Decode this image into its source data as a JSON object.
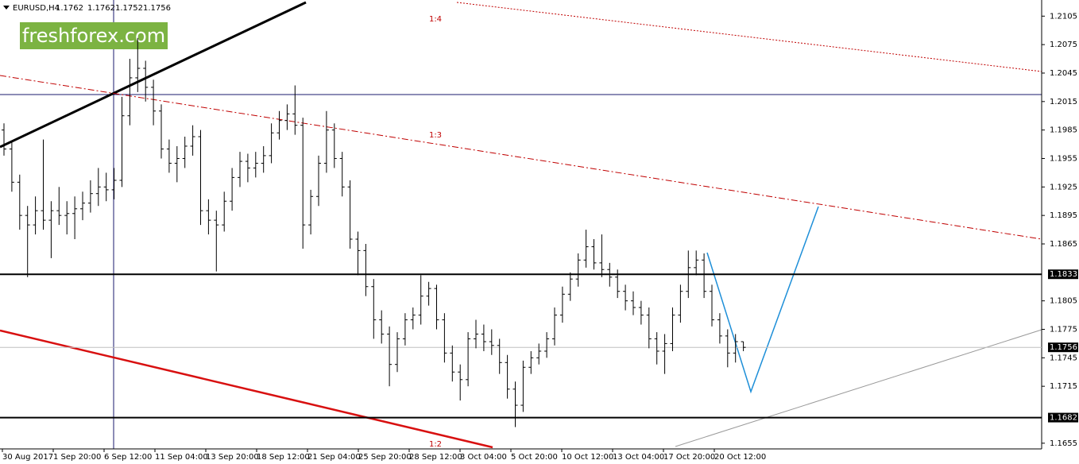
{
  "chart_data": {
    "type": "ohlc",
    "title": "EURUSD,H4",
    "watermark": "freshforex.com",
    "color": "#000000",
    "bars": [
      [
        1.1985,
        1.1992,
        1.1958,
        1.1965
      ],
      [
        1.1965,
        1.1972,
        1.192,
        1.193
      ],
      [
        1.193,
        1.1938,
        1.188,
        1.1895
      ],
      [
        1.1895,
        1.1905,
        1.183,
        1.1885
      ],
      [
        1.1885,
        1.1915,
        1.1875,
        1.19
      ],
      [
        1.19,
        1.1975,
        1.188,
        1.189
      ],
      [
        1.189,
        1.191,
        1.185,
        1.19
      ],
      [
        1.19,
        1.1925,
        1.1885,
        1.1895
      ],
      [
        1.1895,
        1.191,
        1.1875,
        1.1897
      ],
      [
        1.1897,
        1.1915,
        1.187,
        1.1902
      ],
      [
        1.1902,
        1.192,
        1.189,
        1.1908
      ],
      [
        1.1908,
        1.1932,
        1.1898,
        1.1918
      ],
      [
        1.1918,
        1.1945,
        1.1905,
        1.1925
      ],
      [
        1.1925,
        1.194,
        1.191,
        1.1922
      ],
      [
        1.1922,
        1.1945,
        1.1912,
        1.1932
      ],
      [
        1.1932,
        1.202,
        1.1925,
        1.2
      ],
      [
        1.2,
        1.206,
        1.199,
        1.204
      ],
      [
        1.204,
        1.2082,
        1.2025,
        1.205
      ],
      [
        1.205,
        1.2058,
        1.2015,
        1.203
      ],
      [
        1.203,
        1.2038,
        1.199,
        1.2005
      ],
      [
        1.2005,
        1.2012,
        1.1955,
        1.1965
      ],
      [
        1.1965,
        1.1975,
        1.194,
        1.195
      ],
      [
        1.195,
        1.1968,
        1.193,
        1.1955
      ],
      [
        1.1955,
        1.1978,
        1.1945,
        1.1968
      ],
      [
        1.1968,
        1.199,
        1.1958,
        1.1978
      ],
      [
        1.1978,
        1.1985,
        1.1885,
        1.19
      ],
      [
        1.19,
        1.1912,
        1.1875,
        1.189
      ],
      [
        1.189,
        1.19,
        1.1836,
        1.1885
      ],
      [
        1.1885,
        1.192,
        1.1878,
        1.191
      ],
      [
        1.191,
        1.1945,
        1.19,
        1.1935
      ],
      [
        1.1935,
        1.1962,
        1.1925,
        1.1952
      ],
      [
        1.1952,
        1.196,
        1.193,
        1.1945
      ],
      [
        1.1945,
        1.1962,
        1.1935,
        1.195
      ],
      [
        1.195,
        1.1968,
        1.194,
        1.1958
      ],
      [
        1.1958,
        1.1992,
        1.195,
        1.1982
      ],
      [
        1.1982,
        1.2005,
        1.1975,
        1.1995
      ],
      [
        1.1995,
        1.2012,
        1.1985,
        1.2002
      ],
      [
        1.2002,
        1.2032,
        1.198,
        1.199
      ],
      [
        1.199,
        1.1998,
        1.186,
        1.1885
      ],
      [
        1.1885,
        1.1922,
        1.1875,
        1.1915
      ],
      [
        1.1915,
        1.1958,
        1.1905,
        1.195
      ],
      [
        1.195,
        1.2005,
        1.194,
        1.1985
      ],
      [
        1.1985,
        1.1992,
        1.1945,
        1.1955
      ],
      [
        1.1955,
        1.1962,
        1.1915,
        1.1925
      ],
      [
        1.1925,
        1.1932,
        1.186,
        1.187
      ],
      [
        1.187,
        1.1878,
        1.1832,
        1.1858
      ],
      [
        1.1858,
        1.1865,
        1.181,
        1.182
      ],
      [
        1.182,
        1.1828,
        1.1765,
        1.1785
      ],
      [
        1.1785,
        1.1795,
        1.176,
        1.177
      ],
      [
        1.177,
        1.1778,
        1.1715,
        1.1738
      ],
      [
        1.1738,
        1.1772,
        1.173,
        1.1765
      ],
      [
        1.1765,
        1.1792,
        1.1758,
        1.1785
      ],
      [
        1.1785,
        1.1798,
        1.1775,
        1.179
      ],
      [
        1.179,
        1.1832,
        1.178,
        1.181
      ],
      [
        1.181,
        1.1825,
        1.18,
        1.1818
      ],
      [
        1.1818,
        1.1822,
        1.1775,
        1.1785
      ],
      [
        1.1785,
        1.1792,
        1.174,
        1.175
      ],
      [
        1.175,
        1.1758,
        1.172,
        1.173
      ],
      [
        1.173,
        1.1738,
        1.17,
        1.1722
      ],
      [
        1.1722,
        1.1772,
        1.1715,
        1.1765
      ],
      [
        1.1765,
        1.1785,
        1.1755,
        1.177
      ],
      [
        1.177,
        1.178,
        1.1752,
        1.1762
      ],
      [
        1.1762,
        1.1775,
        1.1748,
        1.1758
      ],
      [
        1.1758,
        1.1765,
        1.1728,
        1.174
      ],
      [
        1.174,
        1.1748,
        1.1702,
        1.1712
      ],
      [
        1.1712,
        1.172,
        1.1672,
        1.1695
      ],
      [
        1.1695,
        1.1742,
        1.1688,
        1.1735
      ],
      [
        1.1735,
        1.1752,
        1.1728,
        1.1745
      ],
      [
        1.1745,
        1.176,
        1.1738,
        1.1752
      ],
      [
        1.1752,
        1.1772,
        1.1745,
        1.1765
      ],
      [
        1.1765,
        1.1798,
        1.1758,
        1.179
      ],
      [
        1.179,
        1.182,
        1.1782,
        1.1812
      ],
      [
        1.1812,
        1.1835,
        1.1805,
        1.1828
      ],
      [
        1.1828,
        1.1855,
        1.182,
        1.1848
      ],
      [
        1.1848,
        1.188,
        1.184,
        1.1862
      ],
      [
        1.1862,
        1.187,
        1.1838,
        1.1845
      ],
      [
        1.1845,
        1.1875,
        1.183,
        1.1838
      ],
      [
        1.1838,
        1.1845,
        1.182,
        1.183
      ],
      [
        1.183,
        1.1838,
        1.1808,
        1.1815
      ],
      [
        1.1815,
        1.1822,
        1.1795,
        1.1805
      ],
      [
        1.1805,
        1.1815,
        1.179,
        1.1798
      ],
      [
        1.1798,
        1.1805,
        1.178,
        1.179
      ],
      [
        1.179,
        1.1798,
        1.1755,
        1.1765
      ],
      [
        1.1765,
        1.1772,
        1.1738,
        1.1752
      ],
      [
        1.1752,
        1.177,
        1.1728,
        1.176
      ],
      [
        1.176,
        1.1798,
        1.1752,
        1.179
      ],
      [
        1.179,
        1.1822,
        1.1782,
        1.1815
      ],
      [
        1.1815,
        1.1858,
        1.1808,
        1.184
      ],
      [
        1.184,
        1.1858,
        1.1832,
        1.1848
      ],
      [
        1.1848,
        1.1855,
        1.1808,
        1.1815
      ],
      [
        1.1815,
        1.1822,
        1.1778,
        1.1785
      ],
      [
        1.1785,
        1.1792,
        1.176,
        1.1768
      ],
      [
        1.1768,
        1.1775,
        1.1735,
        1.175
      ],
      [
        1.175,
        1.177,
        1.174,
        1.1762
      ],
      [
        1.1762,
        1.1762,
        1.1752,
        1.1756
      ]
    ],
    "ylim": [
      1.1649,
      1.2122
    ],
    "yticks": [
      1.2105,
      1.2075,
      1.2045,
      1.2015,
      1.1985,
      1.1955,
      1.1925,
      1.1895,
      1.1865,
      1.1805,
      1.1775,
      1.1745,
      1.1715,
      1.1655
    ],
    "levels": [
      1.1833,
      1.1682
    ],
    "price_line": 1.1756,
    "xticklabels": [
      "30 Aug 2017",
      "1 Sep 20:00",
      "6 Sep 12:00",
      "11 Sep 04:00",
      "13 Sep 20:00",
      "18 Sep 12:00",
      "21 Sep 04:00",
      "25 Sep 20:00",
      "28 Sep 12:00",
      "3 Oct 04:00",
      "5 Oct 20:00",
      "10 Oct 12:00",
      "13 Oct 04:00",
      "17 Oct 20:00",
      "20 Oct 12:00"
    ],
    "annotations": [
      "1:4",
      "1:3",
      "1:2"
    ]
  }
}
